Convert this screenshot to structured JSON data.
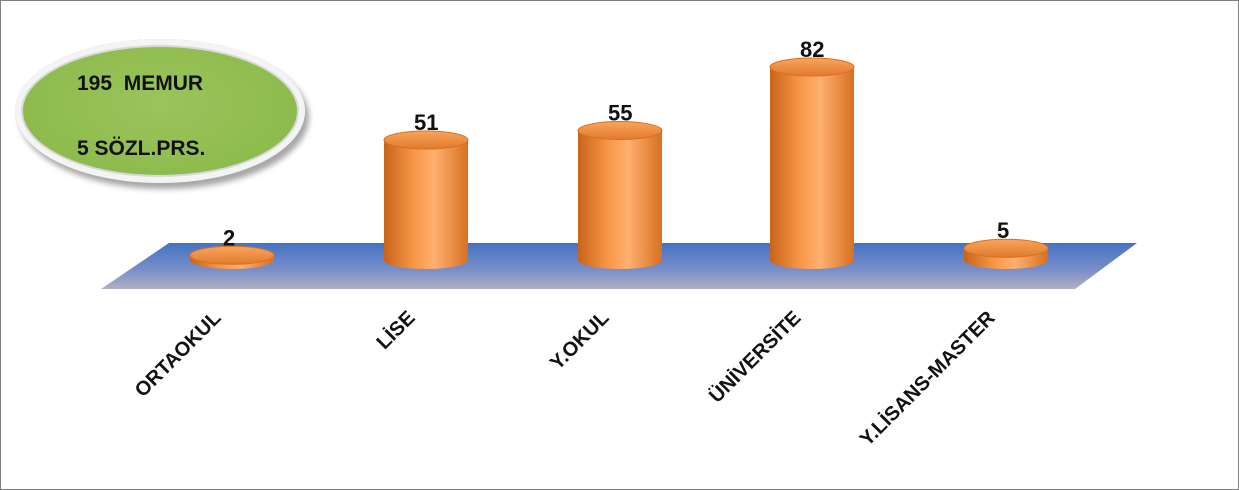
{
  "badge": {
    "line1": "195  MEMUR",
    "line2": "5 SÖZL.PRS."
  },
  "colors": {
    "bar": "#f79646",
    "bar_dark": "#c8641a",
    "floor_top": "#4472c4",
    "floor_bottom": "#a6a6bf",
    "badge": "#8fbc4f"
  },
  "chart_data": {
    "type": "bar",
    "style": "3d-cylinder",
    "categories": [
      "ORTAOKUL",
      "LİSE",
      "Y.OKUL",
      "ÜNİVERSİTE",
      "Y.LİSANS-MASTER"
    ],
    "values": [
      2,
      51,
      55,
      82,
      5
    ],
    "data_labels": [
      "2",
      "51",
      "55",
      "82",
      "5"
    ],
    "title": "",
    "xlabel": "",
    "ylabel": "",
    "ylim": [
      0,
      82
    ],
    "grid": false,
    "legend": "none"
  }
}
